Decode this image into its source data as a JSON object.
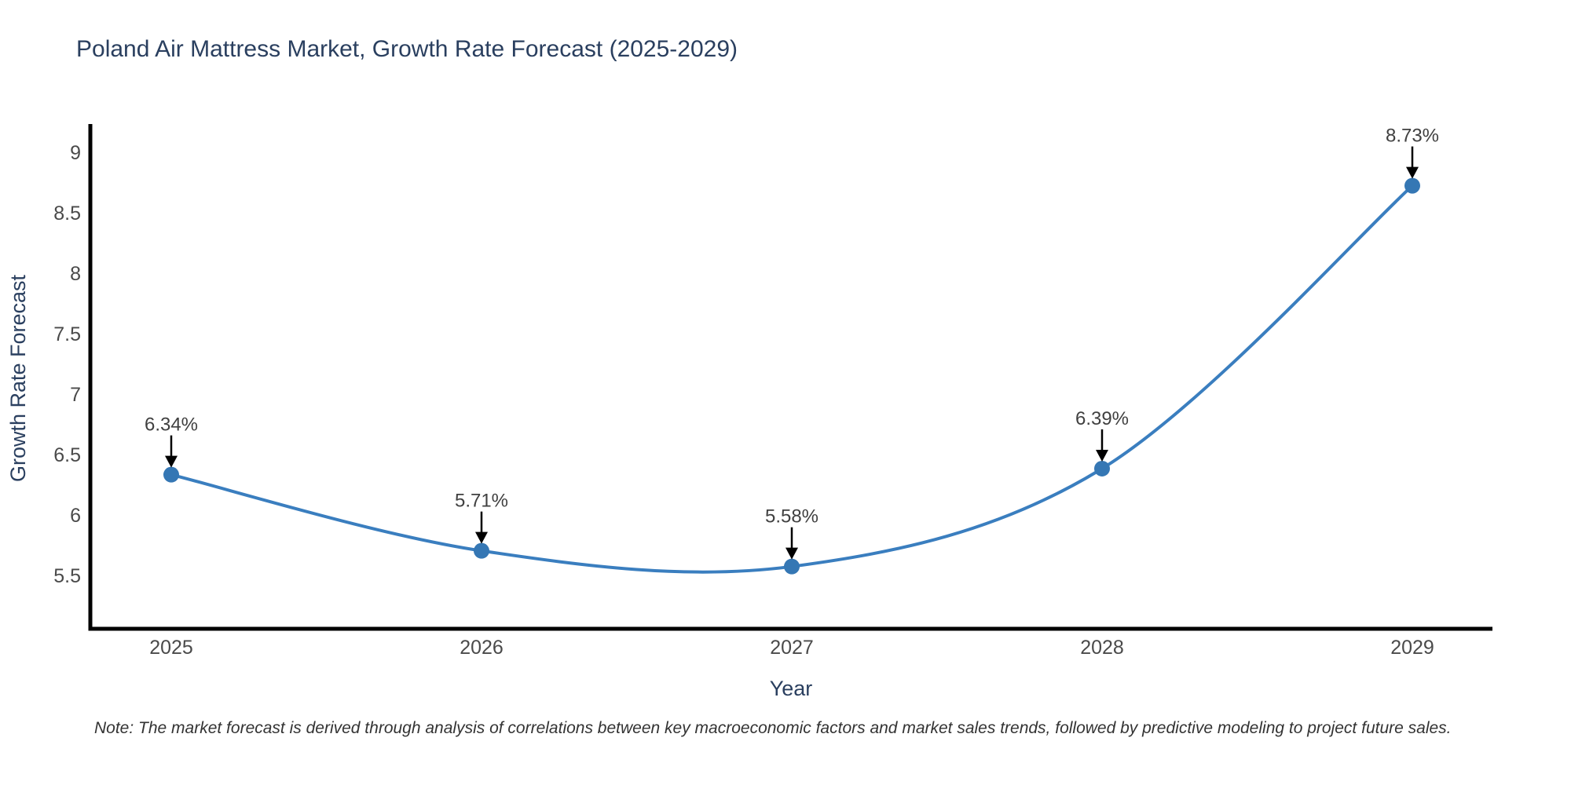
{
  "title": "Poland Air Mattress Market, Growth Rate Forecast (2025-2029)",
  "note": "Note: The market forecast is derived through analysis of correlations between key macroeconomic factors and market sales trends, followed by predictive modeling to project future sales.",
  "chart_data": {
    "type": "line",
    "line_shape": "spline",
    "title": "Poland Air Mattress Market, Growth Rate Forecast (2025-2029)",
    "xlabel": "Year",
    "ylabel": "Growth Rate Forecast",
    "categories": [
      "2025",
      "2026",
      "2027",
      "2028",
      "2029"
    ],
    "values": [
      6.34,
      5.71,
      5.58,
      6.39,
      8.73
    ],
    "point_labels": [
      "6.34%",
      "5.71%",
      "5.58%",
      "6.39%",
      "8.73%"
    ],
    "ytick_values": [
      5.5,
      6,
      6.5,
      7,
      7.5,
      8,
      8.5,
      9
    ],
    "ytick_labels": [
      "5.5",
      "6",
      "6.5",
      "7",
      "7.5",
      "8",
      "8.5",
      "9"
    ],
    "ylim": [
      5.06,
      9.25
    ],
    "grid": false,
    "legend": "none",
    "annotation_arrows": "down",
    "colors": {
      "line": "#3a7ebf",
      "marker": "#3577b4",
      "axis_line": "#000000",
      "title_text": "#2a3f5f",
      "axis_text": "#2a3f5f",
      "tick_text": "#4a4a4a",
      "annotation_text": "#404040",
      "arrow": "#000000",
      "note_text": "#333333",
      "background": "#ffffff"
    }
  }
}
